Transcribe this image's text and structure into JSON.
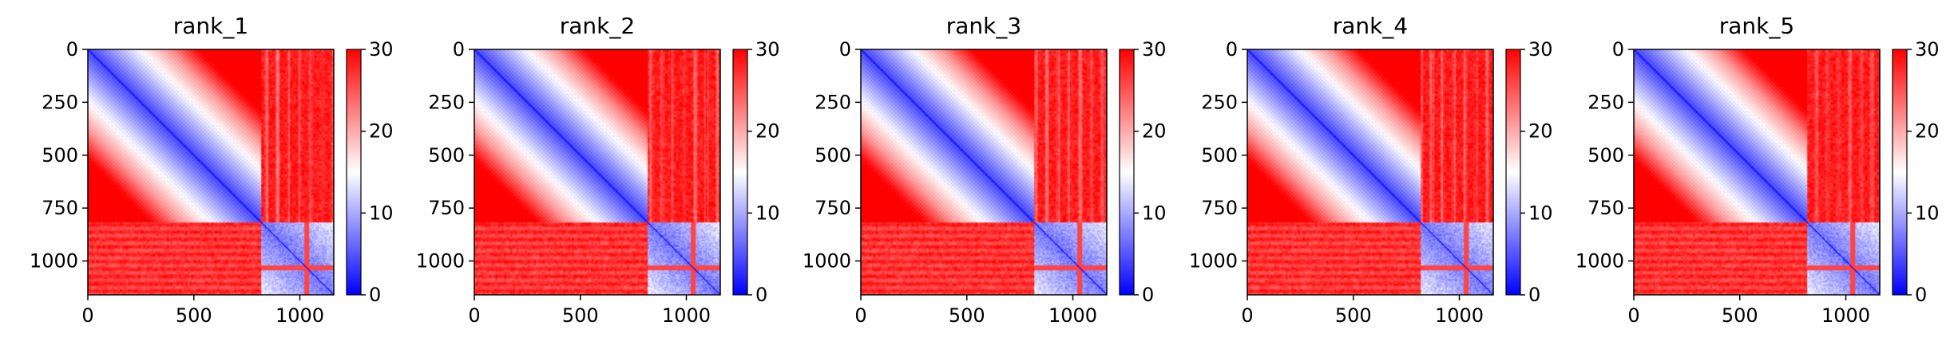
{
  "chart_data": [
    {
      "type": "heatmap",
      "title": "rank_1",
      "x_ticks": [
        "0",
        "500",
        "1000"
      ],
      "y_ticks": [
        "0",
        "250",
        "500",
        "750",
        "1000"
      ],
      "xlim": [
        0,
        1160
      ],
      "ylim": [
        1160,
        0
      ],
      "matrix_size": 1160,
      "block_boundary": 820,
      "colorbar": {
        "vmin": 0,
        "vmax": 30,
        "ticks": [
          "0",
          "10",
          "20",
          "30"
        ],
        "cmap": "bwr"
      }
    },
    {
      "type": "heatmap",
      "title": "rank_2",
      "x_ticks": [
        "0",
        "500",
        "1000"
      ],
      "y_ticks": [
        "0",
        "250",
        "500",
        "750",
        "1000"
      ],
      "xlim": [
        0,
        1160
      ],
      "ylim": [
        1160,
        0
      ],
      "matrix_size": 1160,
      "block_boundary": 820,
      "colorbar": {
        "vmin": 0,
        "vmax": 30,
        "ticks": [
          "0",
          "10",
          "20",
          "30"
        ],
        "cmap": "bwr"
      }
    },
    {
      "type": "heatmap",
      "title": "rank_3",
      "x_ticks": [
        "0",
        "500",
        "1000"
      ],
      "y_ticks": [
        "0",
        "250",
        "500",
        "750",
        "1000"
      ],
      "xlim": [
        0,
        1160
      ],
      "ylim": [
        1160,
        0
      ],
      "matrix_size": 1160,
      "block_boundary": 820,
      "colorbar": {
        "vmin": 0,
        "vmax": 30,
        "ticks": [
          "0",
          "10",
          "20",
          "30"
        ],
        "cmap": "bwr"
      }
    },
    {
      "type": "heatmap",
      "title": "rank_4",
      "x_ticks": [
        "0",
        "500",
        "1000"
      ],
      "y_ticks": [
        "0",
        "250",
        "500",
        "750",
        "1000"
      ],
      "xlim": [
        0,
        1160
      ],
      "ylim": [
        1160,
        0
      ],
      "matrix_size": 1160,
      "block_boundary": 820,
      "colorbar": {
        "vmin": 0,
        "vmax": 30,
        "ticks": [
          "0",
          "10",
          "20",
          "30"
        ],
        "cmap": "bwr"
      }
    },
    {
      "type": "heatmap",
      "title": "rank_5",
      "x_ticks": [
        "0",
        "500",
        "1000"
      ],
      "y_ticks": [
        "0",
        "250",
        "500",
        "750",
        "1000"
      ],
      "xlim": [
        0,
        1160
      ],
      "ylim": [
        1160,
        0
      ],
      "matrix_size": 1160,
      "block_boundary": 820,
      "colorbar": {
        "vmin": 0,
        "vmax": 30,
        "ticks": [
          "0",
          "10",
          "20",
          "30"
        ],
        "cmap": "bwr"
      }
    }
  ],
  "colors": {
    "low": "#0000ff",
    "mid": "#ffffff",
    "high": "#ff0000"
  }
}
